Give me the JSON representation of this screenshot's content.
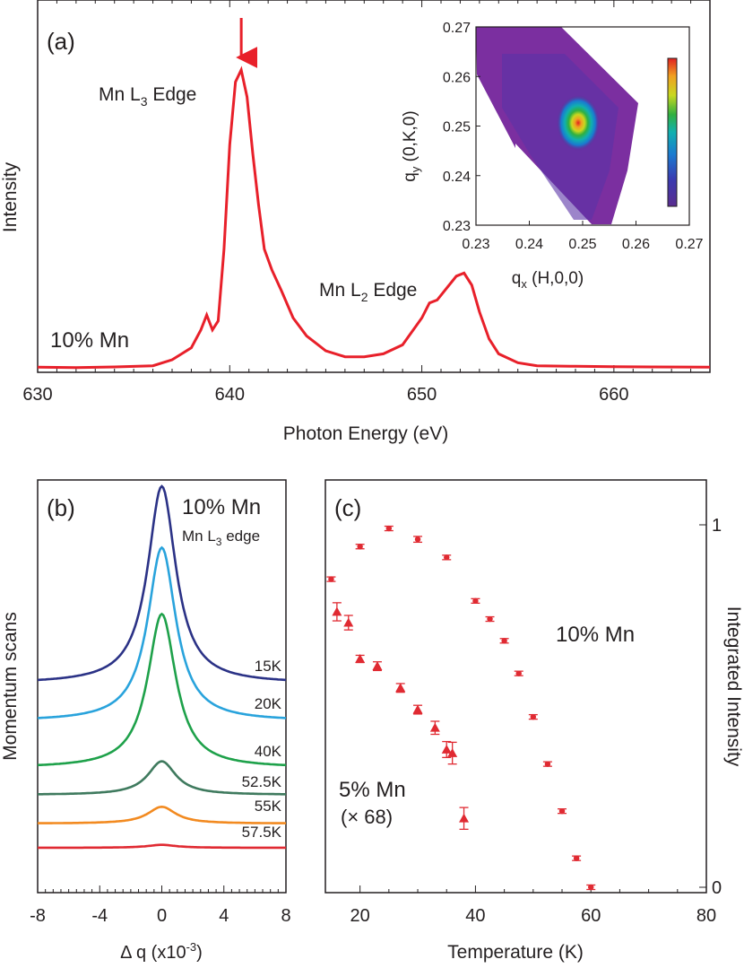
{
  "chart_data": [
    {
      "panel": "(a)",
      "type": "line",
      "xlabel": "Photon Energy (eV)",
      "ylabel": "Intensity",
      "xlim": [
        630,
        665
      ],
      "xticks": [
        "630",
        "640",
        "650",
        "660"
      ],
      "annotations": {
        "l3": {
          "base": "Mn L",
          "sub": "3",
          "rest": " Edge"
        },
        "l2": {
          "base": "Mn L",
          "sub": "2",
          "rest": " Edge"
        },
        "sample": "10% Mn"
      },
      "arrow_at_x": 640.6,
      "series": [
        {
          "color": "#e8202a",
          "x": [
            630,
            632,
            634,
            636,
            637,
            637.5,
            638,
            638.5,
            638.8,
            639.1,
            639.4,
            639.7,
            640,
            640.3,
            640.6,
            640.9,
            641.2,
            641.5,
            641.8,
            642.2,
            642.7,
            643.3,
            644,
            645,
            646,
            647,
            648,
            649,
            650,
            650.4,
            650.8,
            651.3,
            651.8,
            652.2,
            652.6,
            653,
            653.5,
            654,
            655,
            656,
            658,
            660,
            662,
            665
          ],
          "y": [
            0.005,
            0.004,
            0.006,
            0.01,
            0.03,
            0.05,
            0.07,
            0.13,
            0.18,
            0.13,
            0.16,
            0.4,
            0.75,
            0.96,
            1.0,
            0.91,
            0.72,
            0.55,
            0.4,
            0.33,
            0.26,
            0.17,
            0.11,
            0.06,
            0.04,
            0.04,
            0.05,
            0.08,
            0.17,
            0.22,
            0.23,
            0.27,
            0.31,
            0.32,
            0.28,
            0.19,
            0.1,
            0.05,
            0.02,
            0.01,
            0.008,
            0.007,
            0.006,
            0.005
          ]
        }
      ]
    },
    {
      "panel": "inset",
      "type": "heatmap",
      "xlabel": {
        "base": "q",
        "sub": "x",
        "rest": " (H,0,0)"
      },
      "ylabel": {
        "base": "q",
        "sub": "y",
        "rest": " (0,K,0)"
      },
      "xlim": [
        0.23,
        0.27
      ],
      "ylim": [
        0.23,
        0.27
      ],
      "xticks": [
        "0.23",
        "0.24",
        "0.25",
        "0.26",
        "0.27"
      ],
      "yticks": [
        "0.23",
        "0.24",
        "0.25",
        "0.26",
        "0.27"
      ],
      "peak": {
        "x": 0.25,
        "y": 0.251
      },
      "colorscale": [
        "#5a2d8f",
        "#3a3ab0",
        "#1a7ad0",
        "#10b0b0",
        "#30b040",
        "#c8d820",
        "#f0a020",
        "#e02020"
      ]
    },
    {
      "panel": "(b)",
      "type": "line",
      "title": "10% Mn",
      "subtitle": {
        "base": "Mn L",
        "sub": "3",
        "rest": " edge"
      },
      "xlabel": {
        "base": "Δ q (x10",
        "sup": "-3",
        "rest": ")"
      },
      "ylabel": "Momentum scans",
      "xlim": [
        -8,
        8
      ],
      "xticks": [
        "-8",
        "-4",
        "0",
        "4",
        "8"
      ],
      "series": [
        {
          "name": "15K",
          "color": "#2b3286",
          "amplitude": 1.0
        },
        {
          "name": "20K",
          "color": "#29a3dc",
          "amplitude": 0.88
        },
        {
          "name": "40K",
          "color": "#1ea14a",
          "amplitude": 0.78
        },
        {
          "name": "52.5K",
          "color": "#3f7a5e",
          "amplitude": 0.17
        },
        {
          "name": "55K",
          "color": "#f28a20",
          "amplitude": 0.085
        },
        {
          "name": "57.5K",
          "color": "#e02a32",
          "amplitude": 0.015
        }
      ]
    },
    {
      "panel": "(c)",
      "type": "scatter",
      "xlabel": "Temperature (K)",
      "ylabel": "Integrated Intensity",
      "xlim": [
        14,
        80
      ],
      "ylim": [
        0,
        1.05
      ],
      "xticks": [
        "20",
        "40",
        "60",
        "80"
      ],
      "yticks": [
        "0",
        "1"
      ],
      "series": [
        {
          "name": "10% Mn",
          "marker": "circle",
          "color": "#e02a32",
          "x": [
            15,
            20,
            25,
            30,
            35,
            40,
            42.5,
            45,
            47.5,
            50,
            52.5,
            55,
            57.5,
            60
          ],
          "y": [
            0.85,
            0.94,
            0.99,
            0.96,
            0.91,
            0.79,
            0.74,
            0.68,
            0.59,
            0.47,
            0.34,
            0.21,
            0.08,
            0.0
          ],
          "err": [
            0.005,
            0.005,
            0.005,
            0.008,
            0.005,
            0.005,
            0.005,
            0.005,
            0.005,
            0.005,
            0.005,
            0.005,
            0.005,
            0.005
          ]
        },
        {
          "name": "5% Mn",
          "name2": "(× 68)",
          "marker": "triangle",
          "color": "#e02a32",
          "x": [
            16,
            18,
            20,
            23,
            27,
            30,
            33,
            35,
            36,
            38
          ],
          "y": [
            0.76,
            0.73,
            0.63,
            0.61,
            0.55,
            0.49,
            0.44,
            0.38,
            0.37,
            0.19
          ],
          "err": [
            0.025,
            0.02,
            0.01,
            0.012,
            0.012,
            0.012,
            0.018,
            0.022,
            0.03,
            0.03
          ]
        }
      ]
    }
  ]
}
